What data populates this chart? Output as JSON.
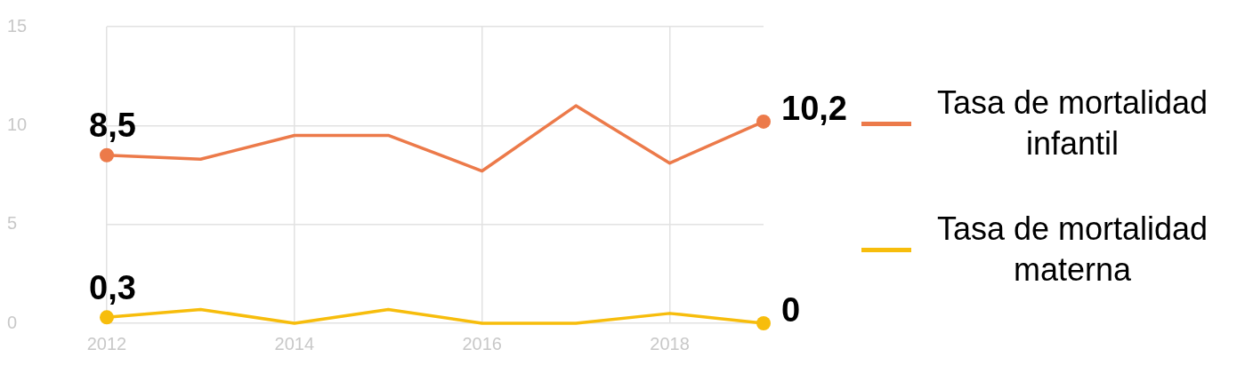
{
  "chart_data": {
    "type": "line",
    "x": [
      2012,
      2013,
      2014,
      2015,
      2016,
      2017,
      2018,
      2019
    ],
    "xlim": [
      2012,
      2019
    ],
    "xticks": [
      2012,
      2014,
      2016,
      2018
    ],
    "ylim": [
      0,
      15
    ],
    "yticks": [
      0,
      5,
      10,
      15
    ],
    "grid": true,
    "legend": "right",
    "line_style": "solid",
    "series": [
      {
        "name": "Tasa de mortalidad infantil",
        "color": "#ec7a4a",
        "values": [
          8.5,
          8.3,
          9.5,
          9.5,
          7.7,
          11.0,
          8.1,
          10.2
        ],
        "value_labels": [
          "8,5",
          null,
          null,
          null,
          null,
          null,
          null,
          "10,2"
        ]
      },
      {
        "name": "Tasa de mortalidad materna",
        "color": "#f7bd0c",
        "values": [
          0.3,
          0.7,
          0,
          0.7,
          0,
          0,
          0.5,
          0
        ],
        "value_labels": [
          "0,3",
          null,
          null,
          null,
          null,
          null,
          null,
          "0"
        ]
      }
    ]
  }
}
